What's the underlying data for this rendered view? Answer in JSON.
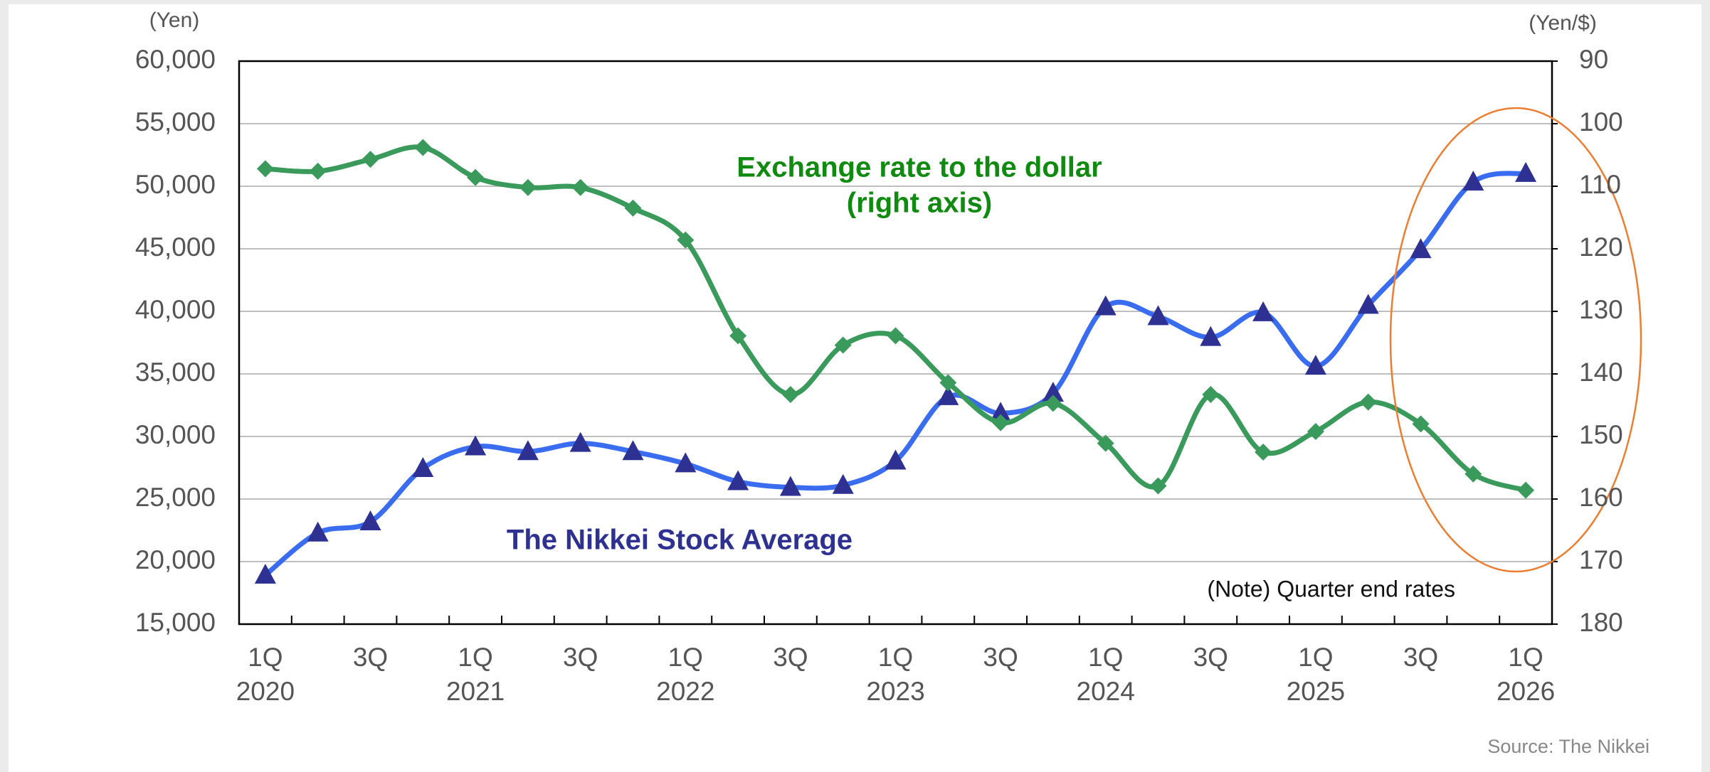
{
  "chart_data": {
    "type": "line",
    "categories": [
      "1Q 2020",
      null,
      "3Q",
      null,
      "1Q 2021",
      null,
      "3Q",
      null,
      "1Q 2022",
      null,
      "3Q",
      null,
      "1Q 2023",
      null,
      "3Q",
      null,
      "1Q 2024",
      null,
      "3Q",
      null,
      "1Q 2025",
      null,
      "3Q",
      null,
      "1Q 2026"
    ],
    "series": [
      {
        "name": "The Nikkei Stock Average",
        "color": "#3a6cf0",
        "marker_color": "#2e3192",
        "axis": "y",
        "values": [
          18917,
          22288,
          23185,
          27444,
          29179,
          28792,
          29453,
          28792,
          27821,
          26393,
          25937,
          26095,
          28041,
          33189,
          31858,
          33464,
          40369,
          39583,
          37920,
          39895,
          35618,
          40487,
          44933,
          50339,
          51030
        ]
      },
      {
        "name": "Exchange rate to the dollar",
        "color": "#3a9a5c",
        "marker_color": "#3a9a5c",
        "axis": "y2",
        "values": [
          107.2,
          107.6,
          105.7,
          103.8,
          108.6,
          110.2,
          110.2,
          113.5,
          118.6,
          133.9,
          143.3,
          135.4,
          133.9,
          141.4,
          147.8,
          144.7,
          151.1,
          157.9,
          143.3,
          152.5,
          149.2,
          144.5,
          148.0,
          156.0,
          158.6
        ]
      }
    ],
    "ylabel": "(Yen)",
    "y2label": "(Yen/$)",
    "ylim": [
      15000,
      60000
    ],
    "yticks": [
      {
        "value": 15000,
        "label": "15,000"
      },
      {
        "value": 20000,
        "label": "20,000"
      },
      {
        "value": 25000,
        "label": "25,000"
      },
      {
        "value": 30000,
        "label": "30,000"
      },
      {
        "value": 35000,
        "label": "35,000"
      },
      {
        "value": 40000,
        "label": "40,000"
      },
      {
        "value": 45000,
        "label": "45,000"
      },
      {
        "value": 50000,
        "label": "50,000"
      },
      {
        "value": 55000,
        "label": "55,000"
      },
      {
        "value": 60000,
        "label": "60,000"
      }
    ],
    "y2lim": [
      180,
      90
    ],
    "y2ticks": [
      90,
      100,
      110,
      120,
      130,
      140,
      150,
      160,
      170,
      180
    ],
    "grid": true,
    "annotations": [
      "(right axis)",
      "(Note) Quarter end rates"
    ],
    "source": "Source: The Nikkei"
  }
}
